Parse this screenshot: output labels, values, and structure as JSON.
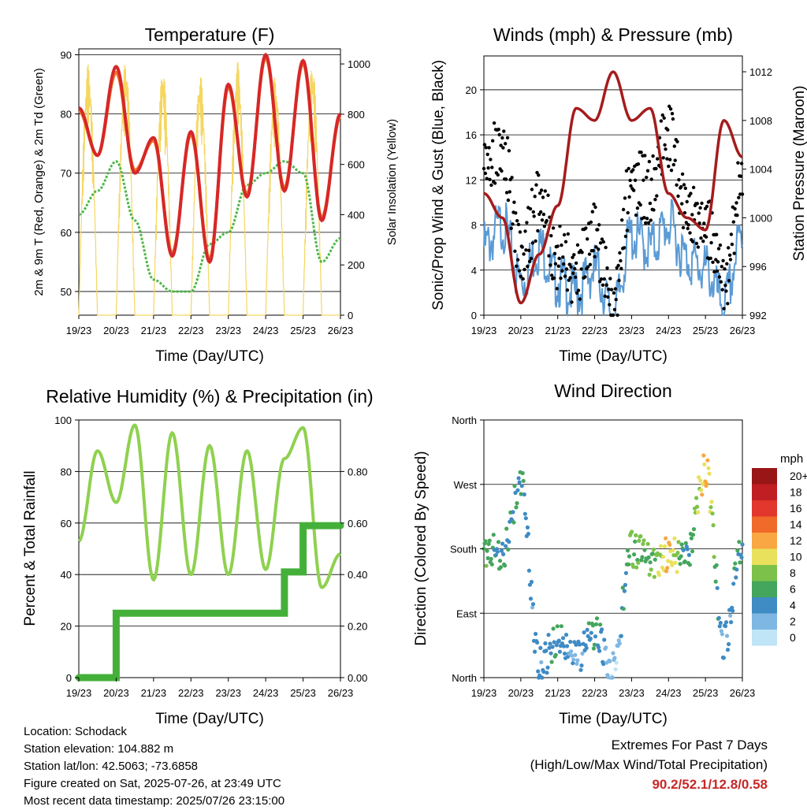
{
  "time_ticks": [
    "19/23",
    "20/23",
    "21/23",
    "22/23",
    "23/23",
    "24/23",
    "25/23",
    "26/23"
  ],
  "footer": {
    "location": "Location: Schodack",
    "elevation": "Station elevation: 104.882 m",
    "latlon": "Station lat/lon: 42.5063; -73.6858",
    "created": "Figure created on Sat, 2025-07-26, at 23:49 UTC",
    "latest": "Most recent data timestamp: 2025/07/26 23:15:00",
    "extremes_title": "Extremes For Past 7 Days",
    "extremes_sub": "(High/Low/Max Wind/Total Precipitation)",
    "extremes_values": "90.2/52.1/12.8/0.58"
  },
  "colors": {
    "temp2m": "#d62728",
    "temp9m": "#f0782d",
    "dewpoint": "#4cb848",
    "solar": "#f5d660",
    "wind": "#5b9bd5",
    "gust": "#000000",
    "pressure": "#a51c1c",
    "rh": "#8fd14f",
    "precip": "#44b03a"
  },
  "chart_data": [
    {
      "id": "temperature",
      "type": "line",
      "title": "Temperature (F)",
      "xlabel": "Time (Day/UTC)",
      "ylabel": "2m & 9m T (Red, Orange) & 2m Td (Green)",
      "ylabel_right": "Solar Insolation (Yellow)",
      "x": [
        0,
        0.5,
        1,
        1.5,
        2,
        2.5,
        3,
        3.5,
        4,
        4.5,
        5,
        5.5,
        6,
        6.5,
        7
      ],
      "ylim": [
        46,
        91
      ],
      "yticks": [
        50,
        60,
        70,
        80,
        90
      ],
      "ylim_right": [
        0,
        1060
      ],
      "yticks_right": [
        0,
        200,
        400,
        600,
        800,
        1000
      ],
      "series": [
        {
          "name": "2m T",
          "axis": "left",
          "color": "#d62728",
          "values": [
            81,
            73,
            88,
            70,
            76,
            56,
            77,
            55,
            85,
            66,
            90,
            67,
            89,
            62,
            80
          ]
        },
        {
          "name": "9m T",
          "axis": "left",
          "color": "#f0782d",
          "values": [
            80.5,
            73,
            87,
            70.5,
            75.5,
            56.5,
            76.5,
            55.5,
            84.5,
            66.5,
            89.5,
            67.5,
            88.5,
            62.5,
            79.5
          ]
        },
        {
          "name": "2m Td",
          "axis": "left",
          "color": "#4cb848",
          "values": [
            63,
            67,
            72,
            62,
            52,
            50,
            50,
            58,
            60,
            68,
            70,
            72,
            70,
            55,
            59
          ]
        },
        {
          "name": "Solar Insolation",
          "axis": "right",
          "color": "#f5d660",
          "values": [
            0,
            1000,
            0,
            1010,
            0,
            980,
            0,
            960,
            0,
            1010,
            0,
            950,
            0,
            1000,
            0
          ]
        }
      ]
    },
    {
      "id": "winds",
      "type": "scatter",
      "title": "Winds (mph) & Pressure (mb)",
      "xlabel": "Time (Day/UTC)",
      "ylabel": "Sonic/Prop Wind & Gust (Blue, Black)",
      "ylabel_right": "Station Pressure (Maroon)",
      "x": [
        0,
        0.5,
        1,
        1.5,
        2,
        2.5,
        3,
        3.5,
        4,
        4.5,
        5,
        5.5,
        6,
        6.5,
        7
      ],
      "ylim": [
        0,
        23
      ],
      "yticks": [
        0,
        4,
        8,
        12,
        16,
        20
      ],
      "ylim_right": [
        992,
        1013.3
      ],
      "yticks_right": [
        992,
        996,
        1000,
        1004,
        1008,
        1012
      ],
      "series": [
        {
          "name": "Wind",
          "axis": "left",
          "color": "#5b9bd5",
          "values": [
            6,
            8,
            3,
            6,
            3,
            2,
            4,
            0,
            7,
            6,
            8,
            5,
            4,
            1,
            7
          ]
        },
        {
          "name": "Gust",
          "axis": "left",
          "color": "#000000",
          "values": [
            13,
            15,
            5,
            10,
            5,
            4,
            7,
            1,
            12,
            11,
            16,
            9,
            8,
            3,
            12
          ]
        },
        {
          "name": "Station Pressure",
          "axis": "right",
          "color": "#a51c1c",
          "values": [
            1002,
            1000,
            993,
            997,
            1001,
            1009,
            1008,
            1012,
            1008,
            1009,
            1002,
            1000,
            999,
            1008,
            1005
          ]
        }
      ]
    },
    {
      "id": "humidity",
      "type": "line",
      "title": "Relative Humidity (%) & Precipitation (in)",
      "xlabel": "Time (Day/UTC)",
      "ylabel": "Percent & Total Rainfall",
      "x": [
        0,
        0.5,
        1,
        1.5,
        2,
        2.5,
        3,
        3.5,
        4,
        4.5,
        5,
        5.5,
        6,
        6.5,
        7
      ],
      "ylim": [
        0,
        100
      ],
      "yticks": [
        0,
        20,
        40,
        60,
        80,
        100
      ],
      "ylim_right": [
        0,
        1.0
      ],
      "yticks_right": [
        "0.00",
        "0.20",
        "0.40",
        "0.60",
        "0.80"
      ],
      "series": [
        {
          "name": "Relative Humidity",
          "axis": "left",
          "color": "#8fd14f",
          "values": [
            53,
            88,
            68,
            98,
            38,
            95,
            40,
            90,
            40,
            88,
            42,
            85,
            97,
            35,
            48
          ]
        },
        {
          "name": "Total Precipitation",
          "axis": "right",
          "color": "#44b03a",
          "values": [
            0.0,
            0.0,
            0.25,
            0.25,
            0.25,
            0.25,
            0.25,
            0.25,
            0.25,
            0.25,
            0.25,
            0.41,
            0.59,
            0.59,
            0.59
          ]
        }
      ]
    },
    {
      "id": "wind_direction",
      "type": "scatter",
      "title": "Wind Direction",
      "xlabel": "Time (Day/UTC)",
      "ylabel": "Direction (Colored By Speed)",
      "ylim": [
        0,
        360
      ],
      "ytick_labels": [
        "North",
        "East",
        "South",
        "West",
        "North"
      ],
      "x": [
        0,
        0.5,
        1,
        1.5,
        2,
        2.5,
        3,
        3.5,
        4,
        4.5,
        5,
        5.5,
        6,
        6.5,
        7
      ],
      "series": [
        {
          "name": "Direction",
          "values": [
            180,
            175,
            270,
            20,
            50,
            30,
            60,
            10,
            180,
            165,
            170,
            175,
            290,
            50,
            180
          ],
          "speeds": [
            6,
            4,
            4,
            2,
            4,
            2,
            4,
            0,
            6,
            6,
            10,
            4,
            10,
            2,
            4
          ]
        }
      ],
      "legend": {
        "title": "mph",
        "labels": [
          "20+",
          "18",
          "16",
          "14",
          "12",
          "10",
          "8",
          "6",
          "4",
          "2",
          "0"
        ],
        "colors": [
          "#991616",
          "#bf1e23",
          "#e1372c",
          "#f06a2a",
          "#f8a742",
          "#e9e15b",
          "#7cc24a",
          "#44a65c",
          "#3f8bc4",
          "#7fb7e3",
          "#bfe5f6"
        ]
      }
    }
  ]
}
